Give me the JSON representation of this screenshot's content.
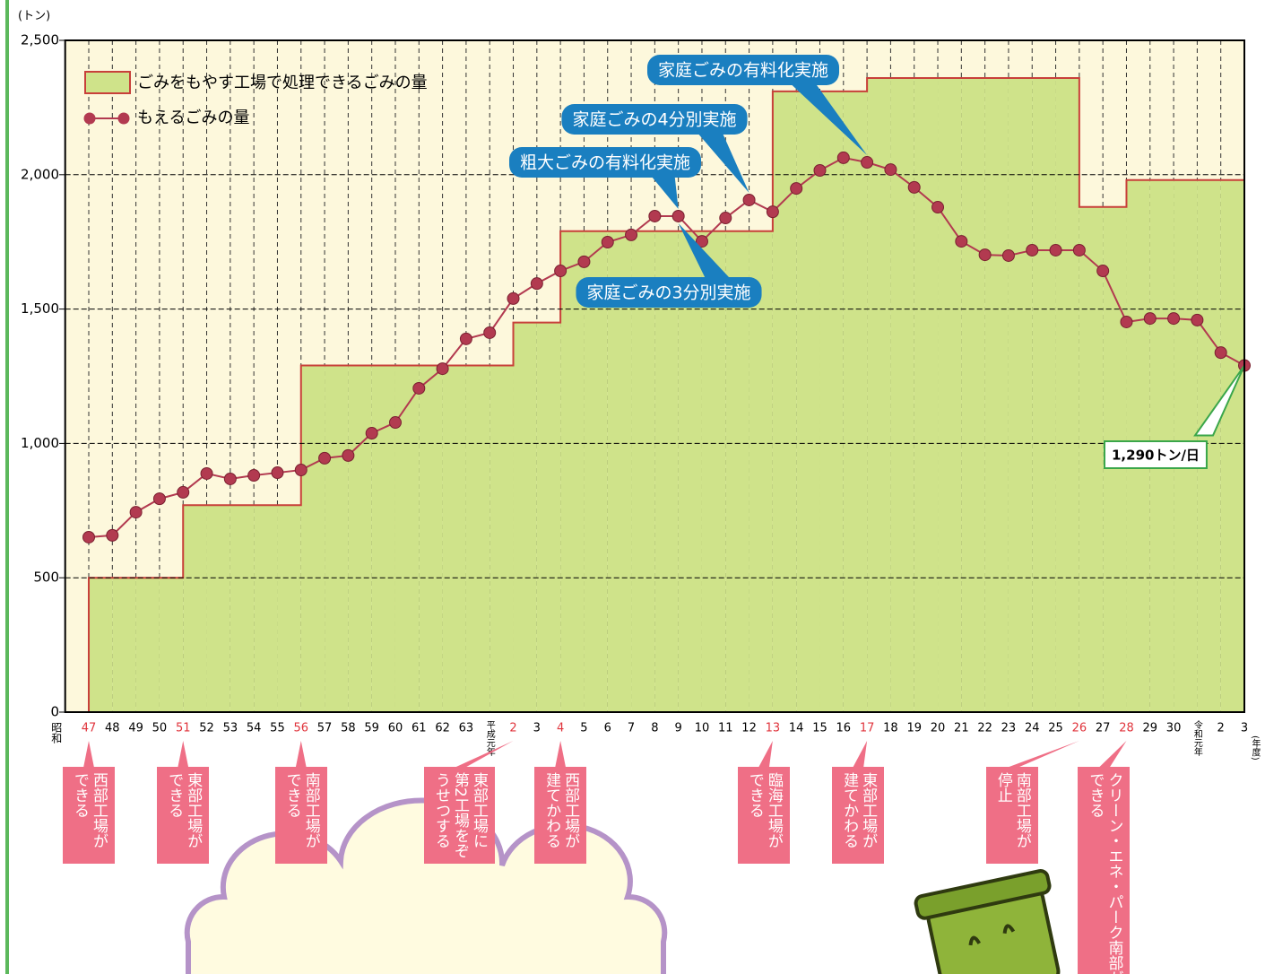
{
  "chart_data": {
    "type": "combo",
    "y_label": "(トン)",
    "x_prefix": "昭和",
    "x_suffix": "(年度)",
    "categories": [
      "47",
      "48",
      "49",
      "50",
      "51",
      "52",
      "53",
      "54",
      "55",
      "56",
      "57",
      "58",
      "59",
      "60",
      "61",
      "62",
      "63",
      "平成元年",
      "2",
      "3",
      "4",
      "5",
      "6",
      "7",
      "8",
      "9",
      "10",
      "11",
      "12",
      "13",
      "14",
      "15",
      "16",
      "17",
      "18",
      "19",
      "20",
      "21",
      "22",
      "23",
      "24",
      "25",
      "26",
      "27",
      "28",
      "29",
      "30",
      "令和元年",
      "2",
      "3"
    ],
    "ylim": [
      0,
      2500
    ],
    "yticks": [
      0,
      500,
      {
        "value": 1000,
        "label": "1,000"
      },
      {
        "value": 1500,
        "label": "1,500"
      },
      {
        "value": 2000,
        "label": "2,000"
      },
      {
        "value": 2500,
        "label": "2,500"
      }
    ],
    "grid": true,
    "highlight_color": "#e0343c",
    "series": [
      {
        "name": "ごみをもやす工場で処理できるごみの量",
        "type": "step",
        "color": "#cfe38a",
        "edge_color": "#c8403a",
        "values": [
          500,
          500,
          500,
          500,
          770,
          770,
          770,
          770,
          770,
          1290,
          1290,
          1290,
          1290,
          1290,
          1290,
          1290,
          1290,
          1290,
          1450,
          1450,
          1790,
          1790,
          1790,
          1790,
          1790,
          1790,
          1790,
          1790,
          1790,
          2310,
          2310,
          2310,
          2310,
          2360,
          2360,
          2360,
          2360,
          2360,
          2360,
          2360,
          2360,
          2360,
          1880,
          1880,
          1980,
          1980,
          1980,
          1980,
          1980,
          null
        ]
      },
      {
        "name": "もえるごみの量",
        "type": "line",
        "color": "#b23a50",
        "values": [
          651,
          658,
          744,
          794,
          818,
          888,
          868,
          881,
          891,
          901,
          945,
          955,
          1038,
          1078,
          1205,
          1278,
          1389,
          1412,
          1539,
          1595,
          1642,
          1676,
          1749,
          1776,
          1846,
          1846,
          1752,
          1839,
          1906,
          1862,
          1949,
          2016,
          2063,
          2046,
          2019,
          1953,
          1879,
          1752,
          1702,
          1699,
          1719,
          1719,
          1719,
          1642,
          1452,
          1465,
          1465,
          1459,
          1338,
          1290
        ],
        "value_labels": [
          null,
          null,
          null,
          null,
          null,
          null,
          null,
          null,
          null,
          null,
          null,
          null,
          null,
          null,
          null,
          null,
          null,
          null,
          null,
          null,
          null,
          null,
          null,
          null,
          null,
          null,
          null,
          null,
          null,
          null,
          null,
          null,
          null,
          null,
          null,
          null,
          null,
          null,
          null,
          null,
          null,
          null,
          null,
          null,
          null,
          null,
          null,
          null,
          null,
          "1,290トン/日"
        ]
      }
    ],
    "annotations": [
      {
        "text": "粗大ごみの有料化実施",
        "at": "9"
      },
      {
        "text": "家庭ごみの4分別実施",
        "at": "12"
      },
      {
        "text": "家庭ごみの有料化実施",
        "at": "17"
      },
      {
        "text": "家庭ごみの3分別実施",
        "at": "9"
      }
    ],
    "annotation_color": "#1a7fc0",
    "events": [
      {
        "at": "47",
        "text": "西部工場ができる"
      },
      {
        "at": "51",
        "text": "東部工場ができる"
      },
      {
        "at": "56",
        "text": "南部工場ができる"
      },
      {
        "at": "2",
        "text": "東部工場に第2工場をぞうせつする"
      },
      {
        "at": "4",
        "text": "西部工場が建てかわる"
      },
      {
        "at": "13",
        "text": "臨海工場ができる"
      },
      {
        "at": "17",
        "text": "東部工場が建てかわる"
      },
      {
        "at": "26",
        "text": "南部工場が停止"
      },
      {
        "at": "28",
        "text": "クリーン・エネ・パーク南部ができる"
      }
    ],
    "event_color": "#ef6f86"
  }
}
